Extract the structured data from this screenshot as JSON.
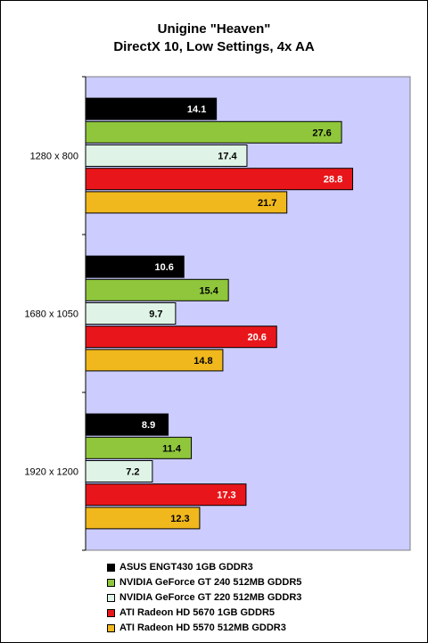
{
  "chart_data": {
    "type": "bar",
    "orientation": "horizontal",
    "title": "Unigine \"Heaven\"",
    "subtitle": "DirectX 10, Low Settings, 4x AA",
    "categories": [
      "1280 x 800",
      "1680 x 1050",
      "1920 x 1200"
    ],
    "series": [
      {
        "name": "ASUS ENGT430 1GB GDDR3",
        "color": "#000000",
        "label_color": "#ffffff",
        "values": [
          14.1,
          10.6,
          8.9
        ]
      },
      {
        "name": "NVIDIA GeForce GT 240 512MB GDDR5",
        "color": "#8fc63b",
        "label_color": "#000000",
        "values": [
          27.6,
          15.4,
          11.4
        ]
      },
      {
        "name": "NVIDIA GeForce GT 220 512MB GDDR3",
        "color": "#dff4e6",
        "label_color": "#000000",
        "values": [
          17.4,
          9.7,
          7.2
        ]
      },
      {
        "name": "ATI Radeon HD 5670 1GB GDDR5",
        "color": "#e8161a",
        "label_color": "#ffffff",
        "values": [
          28.8,
          20.6,
          17.3
        ]
      },
      {
        "name": "ATI Radeon HD 5570 512MB GDDR3",
        "color": "#f0b81d",
        "label_color": "#000000",
        "values": [
          21.7,
          14.8,
          12.3
        ]
      }
    ],
    "xlim": [
      0,
      35
    ],
    "grid": false,
    "plot_background": "#ccccff",
    "legend_position": "bottom"
  }
}
